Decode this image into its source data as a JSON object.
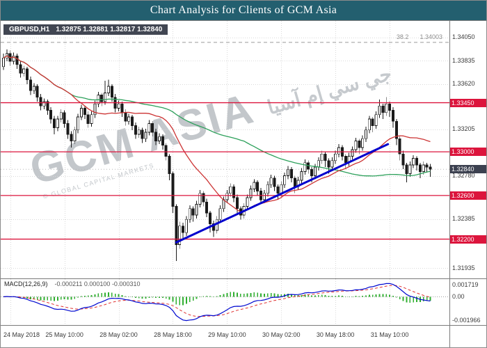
{
  "title_bar": {
    "title": "Chart Analysis for Clients of GCM Asia"
  },
  "chart": {
    "symbol_label": "GBPUSD,H1",
    "ohlc_label": "1.32875 1.32881 1.32817 1.32840",
    "watermark": {
      "main": "GCM ASIA",
      "arabic": "جي سي إم آسيا",
      "small": "© GLOBAL CAPITAL MARKETS"
    }
  },
  "chart_data": {
    "type": "candlestick",
    "symbol": "GBPUSD",
    "timeframe": "H1",
    "slots": 130,
    "price_range": {
      "max": 1.342,
      "min": 1.3184
    },
    "y_axis_labels": [
      {
        "label": "1.34050",
        "price": 1.3405
      },
      {
        "label": "1.33835",
        "price": 1.33835
      },
      {
        "label": "1.33620",
        "price": 1.3362
      },
      {
        "label": "1.33205",
        "price": 1.33205
      },
      {
        "label": "1.32780",
        "price": 1.3278
      },
      {
        "label": "1.32385",
        "price": 1.32385
      },
      {
        "label": "1.31935",
        "price": 1.31935
      }
    ],
    "levels": [
      {
        "label": "1.33450",
        "price": 1.3345
      },
      {
        "label": "1.33000",
        "price": 1.33
      },
      {
        "label": "1.32600",
        "price": 1.326
      },
      {
        "label": "1.32200",
        "price": 1.322
      }
    ],
    "current_price": {
      "label": "1.32840",
      "price": 1.3284
    },
    "fibo": {
      "label": "38.2",
      "value": "1.34003",
      "price": 1.34003
    },
    "x_ticks": [
      {
        "label": "24 May 2018",
        "bar": 2
      },
      {
        "label": "25 May 10:00",
        "bar": 18
      },
      {
        "label": "28 May 02:00",
        "bar": 34
      },
      {
        "label": "28 May 18:00",
        "bar": 50
      },
      {
        "label": "29 May 10:00",
        "bar": 66
      },
      {
        "label": "30 May 02:00",
        "bar": 82
      },
      {
        "label": "30 May 18:00",
        "bar": 98
      },
      {
        "label": "31 May 10:00",
        "bar": 114
      }
    ],
    "trendline": {
      "x1_bar": 51,
      "p1": 1.3217,
      "x2_bar": 113.5,
      "p2": 1.3307,
      "color": "#0000cd"
    },
    "moving_averages": [
      {
        "name": "slow-ma",
        "period": 72,
        "color": "#2ca05a"
      },
      {
        "name": "fast-ma",
        "period": 21,
        "color": "#cc3333"
      }
    ],
    "colors": {
      "up": "#ffffff",
      "down": "#1a1a1a",
      "outline": "#1a1a1a",
      "level": "#dc143c",
      "grid": "#d9d9d9",
      "fibo": "#9a9a9a",
      "macd_line": "#0008d0",
      "macd_signal": "#e03030",
      "macd_hist": "#2fae2f"
    },
    "macd": {
      "label": "MACD(12,26,9)",
      "values_label": "-0.000211 0.000100 -0.000310",
      "params": [
        12,
        26,
        9
      ],
      "axis_labels": [
        "0.001719",
        "0.00",
        "-0.001966"
      ]
    },
    "candles": [
      [
        1.3378,
        1.339,
        1.3375,
        1.3386
      ],
      [
        1.3386,
        1.3394,
        1.3383,
        1.339
      ],
      [
        1.339,
        1.3393,
        1.3379,
        1.3383
      ],
      [
        1.3383,
        1.3391,
        1.338,
        1.3388
      ],
      [
        1.3388,
        1.339,
        1.3376,
        1.338
      ],
      [
        1.338,
        1.3383,
        1.3368,
        1.3372
      ],
      [
        1.3372,
        1.3379,
        1.3369,
        1.3376
      ],
      [
        1.3376,
        1.3378,
        1.3362,
        1.3366
      ],
      [
        1.3366,
        1.3369,
        1.3352,
        1.3356
      ],
      [
        1.3356,
        1.3363,
        1.3353,
        1.336
      ],
      [
        1.336,
        1.3362,
        1.3346,
        1.335
      ],
      [
        1.335,
        1.3353,
        1.3338,
        1.3342
      ],
      [
        1.3342,
        1.3349,
        1.3339,
        1.3346
      ],
      [
        1.3346,
        1.3348,
        1.3334,
        1.3338
      ],
      [
        1.3338,
        1.3341,
        1.3326,
        1.333
      ],
      [
        1.333,
        1.3333,
        1.3316,
        1.3322
      ],
      [
        1.3322,
        1.3333,
        1.3319,
        1.333
      ],
      [
        1.333,
        1.3339,
        1.3327,
        1.3336
      ],
      [
        1.3336,
        1.3338,
        1.3322,
        1.3326
      ],
      [
        1.3326,
        1.3329,
        1.3312,
        1.3316
      ],
      [
        1.3316,
        1.3319,
        1.3304,
        1.331
      ],
      [
        1.331,
        1.3323,
        1.3307,
        1.332
      ],
      [
        1.332,
        1.3335,
        1.3317,
        1.3332
      ],
      [
        1.3332,
        1.3343,
        1.3329,
        1.334
      ],
      [
        1.334,
        1.3342,
        1.333,
        1.3334
      ],
      [
        1.3334,
        1.3337,
        1.3322,
        1.3326
      ],
      [
        1.3326,
        1.3337,
        1.3323,
        1.3334
      ],
      [
        1.3334,
        1.3347,
        1.3331,
        1.3344
      ],
      [
        1.3344,
        1.3355,
        1.3341,
        1.3352
      ],
      [
        1.3352,
        1.3354,
        1.3342,
        1.3346
      ],
      [
        1.3346,
        1.3365,
        1.3343,
        1.3354
      ],
      [
        1.3354,
        1.3366,
        1.3351,
        1.336
      ],
      [
        1.336,
        1.3362,
        1.3346,
        1.335
      ],
      [
        1.335,
        1.3353,
        1.3336,
        1.334
      ],
      [
        1.334,
        1.3347,
        1.3337,
        1.3344
      ],
      [
        1.3344,
        1.3346,
        1.3332,
        1.3336
      ],
      [
        1.3336,
        1.3339,
        1.3324,
        1.3328
      ],
      [
        1.3328,
        1.3335,
        1.3325,
        1.3332
      ],
      [
        1.3332,
        1.3334,
        1.332,
        1.3324
      ],
      [
        1.3324,
        1.3327,
        1.3312,
        1.3316
      ],
      [
        1.3316,
        1.3323,
        1.3313,
        1.332
      ],
      [
        1.332,
        1.3322,
        1.3308,
        1.3312
      ],
      [
        1.3312,
        1.3321,
        1.3309,
        1.3318
      ],
      [
        1.3318,
        1.3329,
        1.3315,
        1.3326
      ],
      [
        1.3326,
        1.3328,
        1.3314,
        1.3318
      ],
      [
        1.3318,
        1.3321,
        1.3306,
        1.331
      ],
      [
        1.331,
        1.3317,
        1.3307,
        1.3314
      ],
      [
        1.3314,
        1.3316,
        1.3302,
        1.3306
      ],
      [
        1.3306,
        1.3308,
        1.3292,
        1.3296
      ],
      [
        1.3296,
        1.3298,
        1.3274,
        1.328
      ],
      [
        1.328,
        1.3282,
        1.3244,
        1.325
      ],
      [
        1.325,
        1.3252,
        1.32,
        1.3215
      ],
      [
        1.3215,
        1.3236,
        1.3211,
        1.3232
      ],
      [
        1.3232,
        1.3235,
        1.322,
        1.3226
      ],
      [
        1.3226,
        1.3241,
        1.3223,
        1.3238
      ],
      [
        1.3238,
        1.3251,
        1.3235,
        1.3248
      ],
      [
        1.3248,
        1.325,
        1.3236,
        1.3242
      ],
      [
        1.3242,
        1.3255,
        1.3239,
        1.3252
      ],
      [
        1.3252,
        1.3265,
        1.3249,
        1.3262
      ],
      [
        1.3262,
        1.3264,
        1.325,
        1.3254
      ],
      [
        1.3254,
        1.3257,
        1.324,
        1.3244
      ],
      [
        1.3244,
        1.3246,
        1.3226,
        1.3234
      ],
      [
        1.3234,
        1.3237,
        1.3222,
        1.3228
      ],
      [
        1.3228,
        1.3241,
        1.3225,
        1.3238
      ],
      [
        1.3238,
        1.3251,
        1.3235,
        1.3248
      ],
      [
        1.3248,
        1.3259,
        1.3245,
        1.3256
      ],
      [
        1.3256,
        1.3265,
        1.3253,
        1.3262
      ],
      [
        1.3262,
        1.3271,
        1.3259,
        1.3268
      ],
      [
        1.3268,
        1.327,
        1.3254,
        1.3258
      ],
      [
        1.3258,
        1.3261,
        1.3244,
        1.3248
      ],
      [
        1.3248,
        1.325,
        1.3238,
        1.3242
      ],
      [
        1.3242,
        1.3253,
        1.3239,
        1.325
      ],
      [
        1.325,
        1.3261,
        1.3247,
        1.3258
      ],
      [
        1.3258,
        1.3269,
        1.3255,
        1.3266
      ],
      [
        1.3266,
        1.3275,
        1.3263,
        1.3272
      ],
      [
        1.3272,
        1.3274,
        1.326,
        1.3264
      ],
      [
        1.3264,
        1.3267,
        1.3252,
        1.3256
      ],
      [
        1.3256,
        1.3265,
        1.3253,
        1.3262
      ],
      [
        1.3262,
        1.3273,
        1.3259,
        1.327
      ],
      [
        1.327,
        1.3279,
        1.3267,
        1.3276
      ],
      [
        1.3276,
        1.3278,
        1.3264,
        1.3268
      ],
      [
        1.3268,
        1.327,
        1.3256,
        1.3262
      ],
      [
        1.3262,
        1.3273,
        1.3259,
        1.327
      ],
      [
        1.327,
        1.3281,
        1.3267,
        1.3278
      ],
      [
        1.3278,
        1.3287,
        1.3275,
        1.3284
      ],
      [
        1.3284,
        1.3286,
        1.3272,
        1.3276
      ],
      [
        1.3276,
        1.3278,
        1.3262,
        1.3268
      ],
      [
        1.3268,
        1.3277,
        1.3265,
        1.3274
      ],
      [
        1.3274,
        1.3285,
        1.3271,
        1.3282
      ],
      [
        1.3282,
        1.3293,
        1.3279,
        1.329
      ],
      [
        1.329,
        1.3292,
        1.328,
        1.3284
      ],
      [
        1.3284,
        1.3286,
        1.3272,
        1.3278
      ],
      [
        1.3278,
        1.3289,
        1.3275,
        1.3286
      ],
      [
        1.3286,
        1.3295,
        1.3283,
        1.3292
      ],
      [
        1.3292,
        1.3301,
        1.3289,
        1.3298
      ],
      [
        1.3298,
        1.33,
        1.3286,
        1.3292
      ],
      [
        1.3292,
        1.3294,
        1.328,
        1.3286
      ],
      [
        1.3286,
        1.3295,
        1.3283,
        1.3292
      ],
      [
        1.3292,
        1.3301,
        1.3289,
        1.3298
      ],
      [
        1.3298,
        1.3307,
        1.3295,
        1.3304
      ],
      [
        1.3304,
        1.3306,
        1.3292,
        1.3296
      ],
      [
        1.3296,
        1.3298,
        1.3284,
        1.329
      ],
      [
        1.329,
        1.3299,
        1.3287,
        1.3296
      ],
      [
        1.3296,
        1.3305,
        1.3293,
        1.3302
      ],
      [
        1.3302,
        1.3313,
        1.3299,
        1.331
      ],
      [
        1.331,
        1.3312,
        1.3298,
        1.3304
      ],
      [
        1.3304,
        1.3315,
        1.3301,
        1.3312
      ],
      [
        1.3312,
        1.3323,
        1.3309,
        1.332
      ],
      [
        1.332,
        1.3333,
        1.3317,
        1.333
      ],
      [
        1.333,
        1.3332,
        1.3318,
        1.3324
      ],
      [
        1.3324,
        1.3337,
        1.3321,
        1.3334
      ],
      [
        1.3334,
        1.3348,
        1.3331,
        1.3342
      ],
      [
        1.3342,
        1.3344,
        1.333,
        1.3336
      ],
      [
        1.3336,
        1.335,
        1.3333,
        1.3344
      ],
      [
        1.3344,
        1.3346,
        1.3332,
        1.3338
      ],
      [
        1.3338,
        1.3341,
        1.3322,
        1.3328
      ],
      [
        1.3328,
        1.333,
        1.3306,
        1.3312
      ],
      [
        1.3312,
        1.3314,
        1.3292,
        1.3298
      ],
      [
        1.3298,
        1.3301,
        1.3284,
        1.3288
      ],
      [
        1.3288,
        1.329,
        1.3272,
        1.328
      ],
      [
        1.328,
        1.3291,
        1.3277,
        1.3288
      ],
      [
        1.3288,
        1.3297,
        1.3285,
        1.3294
      ],
      [
        1.3294,
        1.3296,
        1.3283,
        1.3288
      ],
      [
        1.3288,
        1.329,
        1.3276,
        1.3282
      ],
      [
        1.3282,
        1.3291,
        1.3279,
        1.3288
      ],
      [
        1.3288,
        1.329,
        1.3281,
        1.3286
      ],
      [
        1.3286,
        1.3289,
        1.3277,
        1.3284
      ]
    ]
  }
}
